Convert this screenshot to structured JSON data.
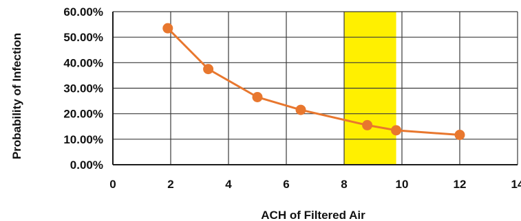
{
  "chart_data": {
    "type": "line",
    "title": "",
    "xlabel": "ACH of Filtered Air",
    "ylabel": "Probability of Infection",
    "xlim": [
      0,
      14
    ],
    "ylim": [
      0,
      60
    ],
    "x_ticks": [
      0,
      2,
      4,
      6,
      8,
      10,
      12,
      14
    ],
    "x_tick_labels": [
      "0",
      "2",
      "4",
      "6",
      "8",
      "10",
      "12",
      "14"
    ],
    "y_ticks": [
      0,
      10,
      20,
      30,
      40,
      50,
      60
    ],
    "y_tick_labels": [
      "0.00%",
      "10.00%",
      "20.00%",
      "30.00%",
      "40.00%",
      "50.00%",
      "60.00%"
    ],
    "grid": true,
    "legend": "none",
    "highlight_band": {
      "x_start": 8,
      "x_end": 9.8,
      "color": "#fff000"
    },
    "series": [
      {
        "color": "#e8772e",
        "x": [
          1.9,
          3.3,
          5.0,
          6.5,
          8.8,
          9.8,
          12.0
        ],
        "y": [
          53.5,
          37.5,
          26.5,
          21.5,
          15.5,
          13.5,
          11.7
        ]
      }
    ]
  }
}
